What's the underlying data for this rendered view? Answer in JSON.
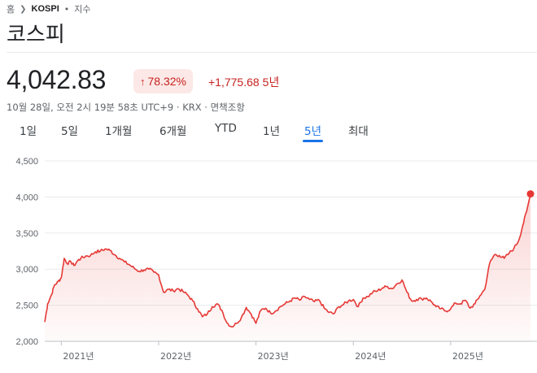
{
  "breadcrumb": {
    "home": "홈",
    "ticker": "KOSPI",
    "separator": "•",
    "type": "지수"
  },
  "title": "코스피",
  "quote": {
    "price": "4,042.83",
    "change_pct": "78.32%",
    "change_abs": "+1,775.68",
    "period": "5년",
    "meta": "10월 28일, 오전 2시 19분 58초 UTC+9 · KRX · 면책조항"
  },
  "tabs": [
    {
      "label": "1일"
    },
    {
      "label": "5일"
    },
    {
      "label": "1개월"
    },
    {
      "label": "6개월"
    },
    {
      "label": "YTD"
    },
    {
      "label": "1년"
    },
    {
      "label": "5년",
      "active": true
    },
    {
      "label": "최대"
    }
  ],
  "colors": {
    "up": "#c5221f",
    "line": "#e53935",
    "accent": "#1a73e8"
  },
  "chart_data": {
    "type": "area",
    "ylim": [
      2000,
      4500
    ],
    "y_ticks": [
      4500,
      4000,
      3500,
      3000,
      2500,
      2000
    ],
    "y_tick_labels": [
      "4,500",
      "4,000",
      "3,500",
      "3,000",
      "2,500",
      "2,000"
    ],
    "x_tick_labels": [
      "2021년",
      "2022년",
      "2023년",
      "2024년",
      "2025년"
    ],
    "x_ticks": [
      2021.0,
      2022.0,
      2023.0,
      2024.0,
      2025.0
    ],
    "xlim": [
      2020.83,
      2025.82
    ],
    "x": [
      2020.83,
      2020.86,
      2020.9,
      2020.93,
      2020.97,
      2021.0,
      2021.03,
      2021.06,
      2021.1,
      2021.13,
      2021.17,
      2021.2,
      2021.25,
      2021.3,
      2021.35,
      2021.4,
      2021.45,
      2021.5,
      2021.55,
      2021.6,
      2021.65,
      2021.7,
      2021.75,
      2021.8,
      2021.85,
      2021.9,
      2021.95,
      2022.0,
      2022.05,
      2022.1,
      2022.15,
      2022.2,
      2022.25,
      2022.3,
      2022.35,
      2022.4,
      2022.45,
      2022.5,
      2022.55,
      2022.6,
      2022.65,
      2022.7,
      2022.75,
      2022.8,
      2022.85,
      2022.9,
      2022.95,
      2023.0,
      2023.05,
      2023.1,
      2023.15,
      2023.2,
      2023.25,
      2023.3,
      2023.35,
      2023.4,
      2023.45,
      2023.5,
      2023.55,
      2023.6,
      2023.65,
      2023.7,
      2023.75,
      2023.8,
      2023.85,
      2023.9,
      2023.95,
      2024.0,
      2024.05,
      2024.1,
      2024.15,
      2024.2,
      2024.25,
      2024.3,
      2024.35,
      2024.4,
      2024.45,
      2024.5,
      2024.55,
      2024.6,
      2024.65,
      2024.7,
      2024.75,
      2024.8,
      2024.85,
      2024.9,
      2024.95,
      2025.0,
      2025.05,
      2025.1,
      2025.15,
      2025.2,
      2025.25,
      2025.3,
      2025.35,
      2025.4,
      2025.45,
      2025.5,
      2025.55,
      2025.6,
      2025.65,
      2025.7,
      2025.74,
      2025.78,
      2025.82
    ],
    "values": [
      2267,
      2520,
      2650,
      2780,
      2830,
      2880,
      3150,
      3080,
      3100,
      3050,
      3120,
      3150,
      3180,
      3190,
      3240,
      3250,
      3280,
      3260,
      3200,
      3150,
      3100,
      3060,
      3010,
      2970,
      2990,
      3000,
      2960,
      2920,
      2680,
      2720,
      2700,
      2730,
      2690,
      2640,
      2560,
      2450,
      2340,
      2380,
      2480,
      2520,
      2430,
      2260,
      2200,
      2250,
      2330,
      2470,
      2380,
      2250,
      2430,
      2460,
      2390,
      2420,
      2480,
      2520,
      2560,
      2600,
      2570,
      2620,
      2580,
      2550,
      2570,
      2460,
      2400,
      2380,
      2480,
      2510,
      2560,
      2580,
      2480,
      2600,
      2620,
      2680,
      2700,
      2740,
      2760,
      2730,
      2800,
      2850,
      2680,
      2560,
      2580,
      2590,
      2600,
      2550,
      2480,
      2450,
      2420,
      2450,
      2530,
      2520,
      2570,
      2460,
      2520,
      2630,
      2720,
      3080,
      3200,
      3190,
      3150,
      3220,
      3290,
      3400,
      3600,
      3800,
      4042.83
    ]
  }
}
